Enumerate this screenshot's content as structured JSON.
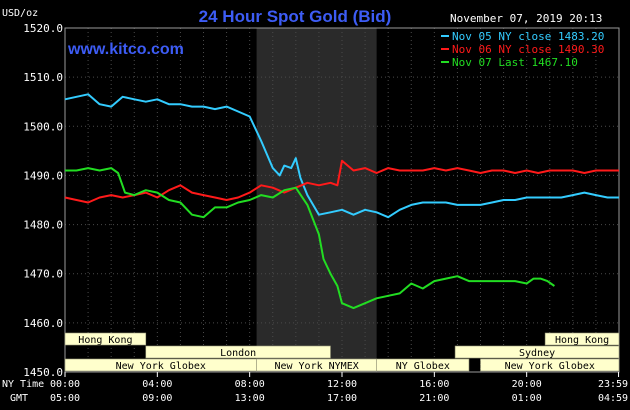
{
  "chart_data": {
    "type": "line",
    "title": "24 Hour Spot Gold (Bid)",
    "website": "www.kitco.com",
    "date_time": "November 07, 2019 20:13",
    "ylabel": "USD/oz",
    "ylim": [
      1450,
      1520
    ],
    "yticks": [
      "1520.0",
      "1510.0",
      "1500.0",
      "1490.0",
      "1480.0",
      "1470.0",
      "1460.0",
      "1450.0"
    ],
    "ytick_values": [
      1520,
      1510,
      1500,
      1490,
      1480,
      1470,
      1460,
      1450
    ],
    "xlim": [
      0,
      24
    ],
    "xtick_hours": [
      0,
      4,
      8,
      12,
      16,
      20,
      23.98
    ],
    "xticks_ny": [
      "00:00",
      "04:00",
      "08:00",
      "12:00",
      "16:00",
      "20:00",
      "23:59"
    ],
    "xticks_gmt": [
      "05:00",
      "09:00",
      "13:00",
      "17:00",
      "21:00",
      "01:00",
      "04:59"
    ],
    "x_row_labels": [
      "NY Time",
      "GMT"
    ],
    "grid": true,
    "highlight_hours": [
      8.3,
      13.5
    ],
    "legend_position": "top-right",
    "series": [
      {
        "name": "Nov 05 NY close 1483.20",
        "color": "#33ccff",
        "x": [
          0,
          0.5,
          1,
          1.5,
          2,
          2.5,
          3,
          3.5,
          4,
          4.5,
          5,
          5.5,
          6,
          6.5,
          7,
          7.5,
          8,
          8.2,
          8.5,
          9,
          9.3,
          9.5,
          9.8,
          10,
          10.2,
          10.5,
          11,
          11.5,
          12,
          12.5,
          13,
          13.5,
          14,
          14.5,
          15,
          15.5,
          16,
          16.5,
          17,
          17.5,
          18,
          18.5,
          19,
          19.5,
          20,
          20.5,
          21,
          21.5,
          22,
          22.5,
          23,
          23.5,
          24
        ],
        "values": [
          1505.5,
          1506,
          1506.5,
          1504.5,
          1504,
          1506,
          1505.5,
          1505,
          1505.5,
          1504.5,
          1504.5,
          1504,
          1504,
          1503.5,
          1504,
          1503,
          1502,
          1500,
          1497,
          1491.5,
          1490,
          1492,
          1491.5,
          1493.5,
          1489.5,
          1486,
          1482,
          1482.5,
          1483,
          1482,
          1483,
          1482.5,
          1481.5,
          1483,
          1484,
          1484.5,
          1484.5,
          1484.5,
          1484,
          1484,
          1484,
          1484.5,
          1485,
          1485,
          1485.5,
          1485.5,
          1485.5,
          1485.5,
          1486,
          1486.5,
          1486,
          1485.5,
          1485.5
        ]
      },
      {
        "name": "Nov 06 NY close 1490.30",
        "color": "#ff1a1a",
        "x": [
          0,
          0.5,
          1,
          1.5,
          2,
          2.5,
          3,
          3.5,
          4,
          4.5,
          5,
          5.5,
          6,
          6.5,
          7,
          7.5,
          8,
          8.5,
          9,
          9.5,
          10,
          10.5,
          11,
          11.5,
          11.8,
          12,
          12.5,
          13,
          13.5,
          14,
          14.5,
          15,
          15.5,
          16,
          16.5,
          17,
          17.5,
          18,
          18.5,
          19,
          19.5,
          20,
          20.5,
          21,
          21.5,
          22,
          22.5,
          23,
          23.5,
          24
        ],
        "values": [
          1485.5,
          1485,
          1484.5,
          1485.5,
          1486,
          1485.5,
          1486,
          1486.5,
          1485.5,
          1487,
          1488,
          1486.5,
          1486,
          1485.5,
          1485,
          1485.5,
          1486.5,
          1488,
          1487.5,
          1486.5,
          1487.5,
          1488.5,
          1488,
          1488.5,
          1488,
          1493,
          1491,
          1491.5,
          1490.5,
          1491.5,
          1491,
          1491,
          1491,
          1491.5,
          1491,
          1491.5,
          1491,
          1490.5,
          1491,
          1491,
          1490.5,
          1491,
          1490.5,
          1491,
          1491,
          1491,
          1490.5,
          1491,
          1491,
          1491
        ]
      },
      {
        "name": "Nov 07 Last 1467.10",
        "color": "#22dd22",
        "x": [
          0,
          0.5,
          1,
          1.5,
          2,
          2.3,
          2.6,
          3,
          3.5,
          4,
          4.5,
          5,
          5.5,
          6,
          6.5,
          7,
          7.5,
          8,
          8.5,
          9,
          9.5,
          10,
          10.5,
          11,
          11.2,
          11.5,
          11.8,
          12,
          12.5,
          13,
          13.5,
          14,
          14.5,
          15,
          15.5,
          16,
          16.5,
          17,
          17.5,
          18,
          18.5,
          19,
          19.5,
          20,
          20.3,
          20.6,
          20.9,
          21.2
        ],
        "values": [
          1491,
          1491,
          1491.5,
          1491,
          1491.5,
          1490.5,
          1486.5,
          1486,
          1487,
          1486.5,
          1485,
          1484.5,
          1482,
          1481.5,
          1483.5,
          1483.5,
          1484.5,
          1485,
          1486,
          1485.5,
          1487,
          1487.5,
          1484,
          1478,
          1473,
          1470,
          1467.5,
          1464,
          1463,
          1464,
          1465,
          1465.5,
          1466,
          1468,
          1467,
          1468.5,
          1469,
          1469.5,
          1468.5,
          1468.5,
          1468.5,
          1468.5,
          1468.5,
          1468,
          1469,
          1469,
          1468.5,
          1467.5
        ]
      }
    ],
    "markets": [
      {
        "name": "Hong Kong",
        "start": 0,
        "end": 3.5,
        "row": 1
      },
      {
        "name": "Hong Kong",
        "start": 20.8,
        "end": 24,
        "row": 1
      },
      {
        "name": "London",
        "start": 3.5,
        "end": 11.5,
        "row": 2
      },
      {
        "name": "Sydney",
        "start": 16.9,
        "end": 24,
        "row": 2
      },
      {
        "name": "New York Globex",
        "start": 0,
        "end": 8.3,
        "row": 3
      },
      {
        "name": "New York NYMEX",
        "start": 8.3,
        "end": 13.5,
        "row": 3
      },
      {
        "name": "NY Globex",
        "start": 13.5,
        "end": 17.5,
        "row": 3
      },
      {
        "name": "New York Globex",
        "start": 18,
        "end": 24,
        "row": 3
      }
    ]
  }
}
